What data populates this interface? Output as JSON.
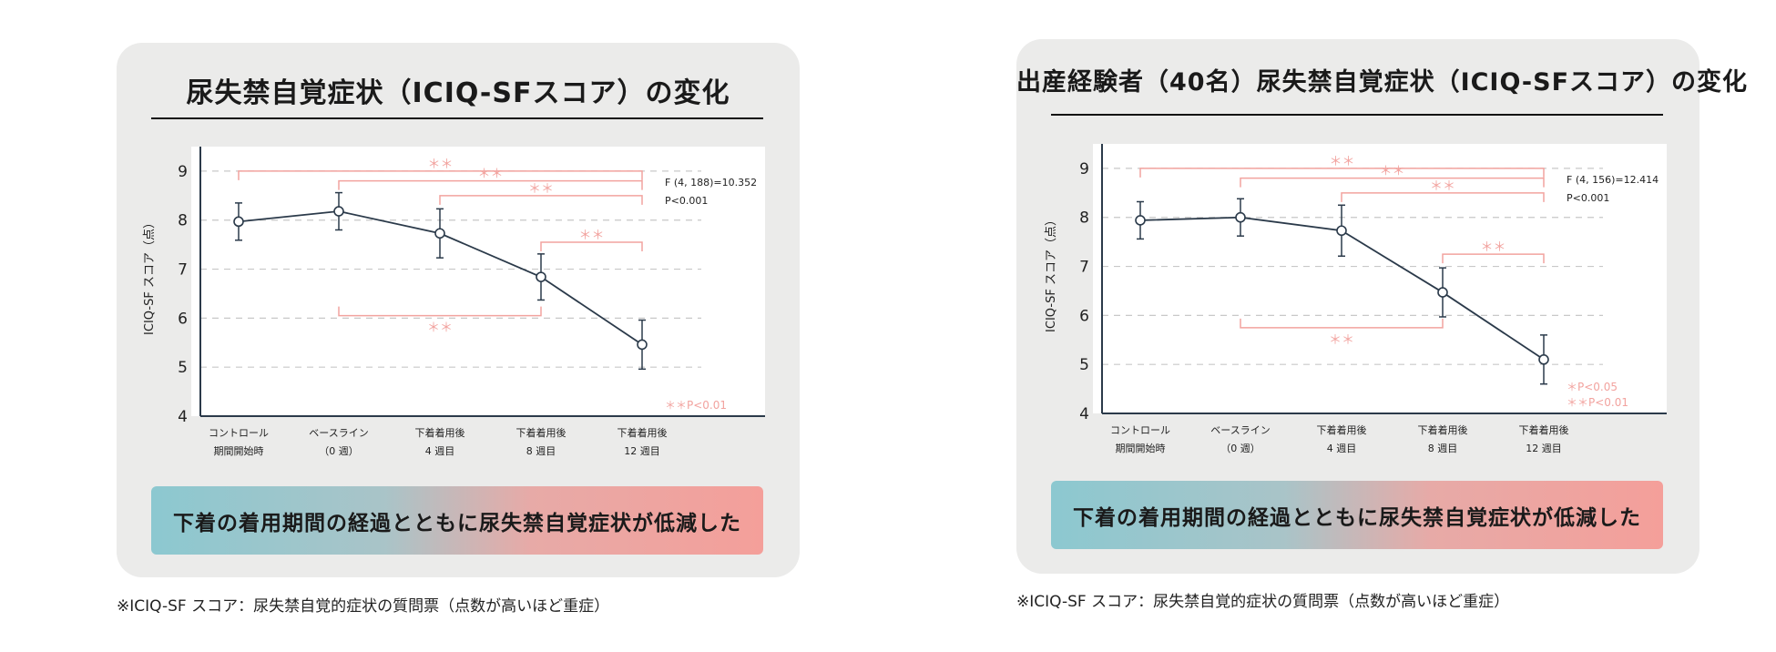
{
  "panels": [
    {
      "title": "尿失禁自覚症状（ICIQ-SFスコア）の変化",
      "banner": "下着の着用期間の経過とともに尿失禁自覚症状が低減した",
      "footnote": "※ICIQ-SF スコア：尿失禁自覚的症状の質問票（点数が高いほど重症）"
    },
    {
      "title": "出産経験者（40名）尿失禁自覚症状（ICIQ-SFスコア）の変化",
      "banner": "下着の着用期間の経過とともに尿失禁自覚症状が低減した",
      "footnote": "※ICIQ-SF スコア：尿失禁自覚的症状の質問票（点数が高いほど重症）"
    }
  ],
  "colors": {
    "line": "#2b3a4a",
    "significance": "#f2a39f",
    "grid": "#c8c8c8",
    "card": "#ebebea"
  },
  "chart_data": [
    {
      "type": "line",
      "ylabel": "ICIQ-SF スコア（点）",
      "categories": [
        [
          "コントロール",
          "期間開始時"
        ],
        [
          "ベースライン",
          "（0 週）"
        ],
        [
          "下着着用後",
          "4 週目"
        ],
        [
          "下着着用後",
          "8 週目"
        ],
        [
          "下着着用後",
          "12 週目"
        ]
      ],
      "values": [
        7.97,
        8.18,
        7.73,
        6.84,
        5.46
      ],
      "errors": [
        0.38,
        0.38,
        0.5,
        0.47,
        0.5
      ],
      "ylim": [
        4,
        9.5
      ],
      "yticks": [
        4,
        5,
        6,
        7,
        8,
        9
      ],
      "grid": true,
      "stats": [
        "F (4, 188)=10.352",
        "P<0.001"
      ],
      "significance_note": [
        "＊＊P<0.01"
      ],
      "brackets": [
        {
          "from": 0,
          "to": 4,
          "label": "＊＊",
          "y": 9.0,
          "side": "above"
        },
        {
          "from": 1,
          "to": 4,
          "label": "＊＊",
          "y": 8.8,
          "side": "above"
        },
        {
          "from": 2,
          "to": 4,
          "label": "＊＊",
          "y": 8.5,
          "side": "above"
        },
        {
          "from": 3,
          "to": 4,
          "label": "＊＊",
          "y": 7.55,
          "side": "above"
        },
        {
          "from": 1,
          "to": 3,
          "label": "＊＊",
          "y": 6.05,
          "side": "below"
        }
      ]
    },
    {
      "type": "line",
      "ylabel": "ICIQ-SF スコア（点）",
      "categories": [
        [
          "コントロール",
          "期間開始時"
        ],
        [
          "ベースライン",
          "（0 週）"
        ],
        [
          "下着着用後",
          "4 週目"
        ],
        [
          "下着着用後",
          "8 週目"
        ],
        [
          "下着着用後",
          "12 週目"
        ]
      ],
      "values": [
        7.94,
        8.0,
        7.73,
        6.47,
        5.1
      ],
      "errors": [
        0.38,
        0.38,
        0.52,
        0.5,
        0.5
      ],
      "ylim": [
        4,
        9.5
      ],
      "yticks": [
        4,
        5,
        6,
        7,
        8,
        9
      ],
      "grid": true,
      "stats": [
        "F (4, 156)=12.414",
        "P<0.001"
      ],
      "significance_note": [
        "＊P<0.05",
        "＊＊P<0.01"
      ],
      "brackets": [
        {
          "from": 0,
          "to": 4,
          "label": "＊＊",
          "y": 9.0,
          "side": "above"
        },
        {
          "from": 1,
          "to": 4,
          "label": "＊＊",
          "y": 8.8,
          "side": "above"
        },
        {
          "from": 2,
          "to": 4,
          "label": "＊＊",
          "y": 8.5,
          "side": "above"
        },
        {
          "from": 3,
          "to": 4,
          "label": "＊＊",
          "y": 7.25,
          "side": "above"
        },
        {
          "from": 1,
          "to": 3,
          "label": "＊＊",
          "y": 5.75,
          "side": "below"
        }
      ]
    }
  ]
}
